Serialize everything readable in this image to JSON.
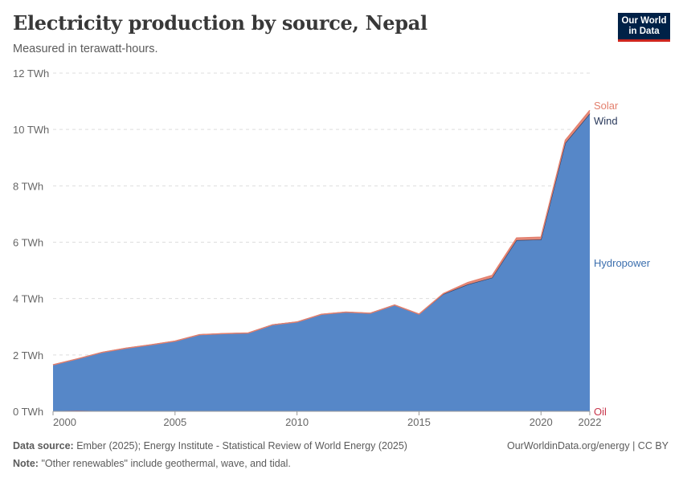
{
  "header": {
    "title": "Electricity production by source, Nepal",
    "subtitle": "Measured in terawatt-hours.",
    "logo_line1": "Our World",
    "logo_line2": "in Data"
  },
  "footer": {
    "source_label": "Data source:",
    "source_text": "Ember (2025); Energy Institute - Statistical Review of World Energy (2025)",
    "note_label": "Note:",
    "note_text": "\"Other renewables\" include geothermal, wave, and tidal.",
    "credit": "OurWorldinData.org/energy | CC BY"
  },
  "colors": {
    "hydropower": "#5687c8",
    "hydropower_line": "#3c6fae",
    "solar": "#e3806e",
    "wind": "#2a3a5c",
    "oil": "#c7344a",
    "grid": "#dddddd",
    "axis": "#666666"
  },
  "chart_data": {
    "type": "area",
    "stacked": true,
    "title": "Electricity production by source, Nepal",
    "ylabel": "TWh",
    "ylim": [
      0,
      12
    ],
    "yticks": [
      0,
      2,
      4,
      6,
      8,
      10,
      12
    ],
    "ytick_labels": [
      "0 TWh",
      "2 TWh",
      "4 TWh",
      "6 TWh",
      "8 TWh",
      "10 TWh",
      "12 TWh"
    ],
    "xlim": [
      2000,
      2022
    ],
    "xticks": [
      2000,
      2005,
      2010,
      2015,
      2020,
      2022
    ],
    "xtick_labels": [
      "2000",
      "2005",
      "2010",
      "2015",
      "2020",
      "2022"
    ],
    "x": [
      2000,
      2001,
      2002,
      2003,
      2004,
      2005,
      2006,
      2007,
      2008,
      2009,
      2010,
      2011,
      2012,
      2013,
      2014,
      2015,
      2016,
      2017,
      2018,
      2019,
      2020,
      2021,
      2022
    ],
    "series": [
      {
        "name": "Oil",
        "values": [
          0.01,
          0.02,
          0.01,
          0.01,
          0.01,
          0.01,
          0.01,
          0.01,
          0.01,
          0.01,
          0.01,
          0.01,
          0.01,
          0.01,
          0.01,
          0.01,
          0.01,
          0.01,
          0.01,
          0.01,
          0.01,
          0.01,
          0.01
        ]
      },
      {
        "name": "Hydropower",
        "values": [
          1.64,
          1.84,
          2.08,
          2.23,
          2.35,
          2.48,
          2.71,
          2.75,
          2.77,
          3.06,
          3.16,
          3.43,
          3.51,
          3.47,
          3.76,
          3.44,
          4.15,
          4.49,
          4.73,
          6.06,
          6.08,
          9.51,
          10.55
        ]
      },
      {
        "name": "Wind",
        "values": [
          0,
          0,
          0,
          0,
          0,
          0,
          0,
          0,
          0,
          0,
          0,
          0,
          0,
          0,
          0,
          0,
          0,
          0,
          0,
          0,
          0,
          0,
          0
        ]
      },
      {
        "name": "Solar",
        "values": [
          0,
          0,
          0,
          0,
          0,
          0,
          0,
          0,
          0,
          0,
          0,
          0,
          0,
          0,
          0,
          0,
          0.02,
          0.07,
          0.08,
          0.08,
          0.09,
          0.1,
          0.12
        ]
      }
    ],
    "series_labels": [
      "Solar",
      "Wind",
      "Hydropower",
      "Oil"
    ]
  }
}
